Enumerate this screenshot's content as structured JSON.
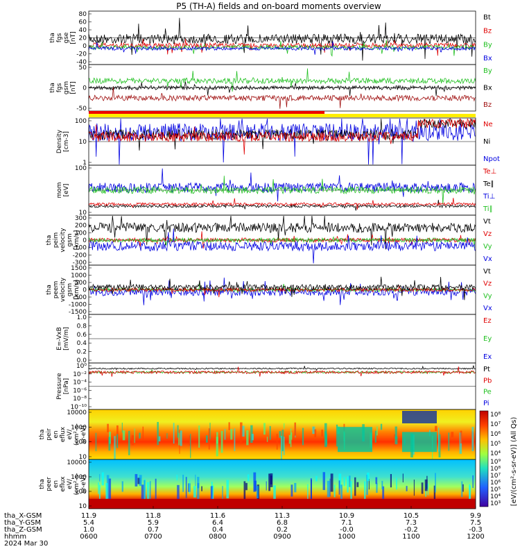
{
  "title": "P5 (TH-A) fields and on-board moments overview",
  "colors": {
    "black": "#000000",
    "red": "#e00000",
    "green": "#20c020",
    "blue": "#0000e0",
    "darkred": "#a01010",
    "yellow": "#ffee00",
    "barred": "#ee0000"
  },
  "chart_data": {
    "type": "line",
    "title": "P5 (TH-A) fields and on-board moments overview",
    "x_ticks": [
      "0600",
      "0700",
      "0800",
      "0900",
      "1000",
      "1100",
      "1200"
    ],
    "ephemeris": {
      "labels": [
        "tha_X-GSM",
        "tha_Y-GSM",
        "tha_Z-GSM",
        "hhmm",
        "2024 Mar 30"
      ],
      "x_gsm": [
        "11.9",
        "11.8",
        "11.6",
        "11.3",
        "10.9",
        "10.5",
        "9.9"
      ],
      "y_gsm": [
        "5.4",
        "5.9",
        "6.4",
        "6.8",
        "7.1",
        "7.3",
        "7.5"
      ],
      "z_gsm": [
        "1.0",
        "0.7",
        "0.4",
        "0.2",
        "-0.0",
        "-0.2",
        "-0.3"
      ],
      "hhmm": [
        "0600",
        "0700",
        "0800",
        "0900",
        "1000",
        "1100",
        "1200"
      ]
    },
    "panels": [
      {
        "id": "fgs_gse",
        "ylabel_lines": [
          "tha",
          "fgs",
          "gse",
          "[nT]"
        ],
        "yticks": [
          "80",
          "60",
          "40",
          "20",
          "0",
          "-20",
          "-40"
        ],
        "legend": [
          {
            "text": "Bt",
            "color": "black"
          },
          {
            "text": "Bz",
            "color": "red"
          },
          {
            "text": "By",
            "color": "green"
          },
          {
            "text": "Bx",
            "color": "blue"
          }
        ]
      },
      {
        "id": "fgs_gsm",
        "ylabel_lines": [
          "tha",
          "fgs",
          "gsm",
          "[nT]"
        ],
        "yticks": [
          "50",
          "0",
          "-50"
        ],
        "legend": [
          {
            "text": "By",
            "color": "green"
          },
          {
            "text": "Bx",
            "color": "black"
          },
          {
            "text": "Bz",
            "color": "darkred"
          }
        ]
      },
      {
        "id": "density",
        "ylabel_lines": [
          "Density",
          "[cm-3]"
        ],
        "yticks": [
          "100",
          "10",
          "1"
        ],
        "legend": [
          {
            "text": "Ne",
            "color": "red"
          },
          {
            "text": "Ni",
            "color": "black"
          },
          {
            "text": "Npot",
            "color": "blue"
          }
        ]
      },
      {
        "id": "temp",
        "ylabel_lines": [
          "mom",
          "[eV]"
        ],
        "yticks": [
          "100",
          "10"
        ],
        "legend": [
          {
            "text": "Te⊥",
            "color": "red"
          },
          {
            "text": "Te∥",
            "color": "black"
          },
          {
            "text": "Ti⊥",
            "color": "blue"
          },
          {
            "text": "Ti∥",
            "color": "green"
          }
        ]
      },
      {
        "id": "peim",
        "ylabel_lines": [
          "tha",
          "peim",
          "velocity",
          "gsm",
          "[km/s]"
        ],
        "yticks": [
          "300",
          "200",
          "100",
          "0",
          "-100",
          "-200",
          "-300"
        ],
        "legend": [
          {
            "text": "Vt",
            "color": "black"
          },
          {
            "text": "Vz",
            "color": "red"
          },
          {
            "text": "Vy",
            "color": "green"
          },
          {
            "text": "Vx",
            "color": "blue"
          }
        ]
      },
      {
        "id": "peem",
        "ylabel_lines": [
          "tha",
          "peem",
          "velocity",
          "gsm",
          "[km/s]"
        ],
        "yticks": [
          "1500",
          "1000",
          "500",
          "0",
          "-500",
          "-1000",
          "-1500"
        ],
        "legend": [
          {
            "text": "Vt",
            "color": "black"
          },
          {
            "text": "Vz",
            "color": "red"
          },
          {
            "text": "Vy",
            "color": "green"
          },
          {
            "text": "Vx",
            "color": "blue"
          }
        ]
      },
      {
        "id": "efield",
        "ylabel_lines": [
          "E=-VxB",
          "[mV/m]"
        ],
        "yticks": [
          "1.0",
          "0.8",
          "0.6",
          "0.4",
          "0.2",
          "0.0"
        ],
        "legend": [
          {
            "text": "Ez",
            "color": "red"
          },
          {
            "text": "Ey",
            "color": "green"
          },
          {
            "text": "Ex",
            "color": "blue"
          }
        ]
      },
      {
        "id": "pressure",
        "ylabel_lines": [
          "Pressure",
          "[nPa]"
        ],
        "yticks": [
          "10⁰",
          "10⁻²",
          "10⁻⁴",
          "10⁻⁶",
          "10⁻⁸",
          "10⁻¹⁰"
        ],
        "legend": [
          {
            "text": "Pt",
            "color": "black"
          },
          {
            "text": "Pb",
            "color": "red"
          },
          {
            "text": "Pe",
            "color": "green"
          },
          {
            "text": "Pi",
            "color": "blue"
          }
        ]
      },
      {
        "id": "peir",
        "ylabel_lines": [
          "tha",
          "peir",
          "en",
          "eflux",
          "eV/",
          "(cm²-s-",
          "sr-eV)"
        ],
        "yticks": [
          "10000",
          "1000",
          "100",
          "10"
        ]
      },
      {
        "id": "peer",
        "ylabel_lines": [
          "tha",
          "peer",
          "en",
          "eflux",
          "eV/",
          "(cm²-s-",
          "sr-eV)"
        ],
        "yticks": [
          "10000",
          "1000",
          "100",
          "10"
        ]
      }
    ],
    "colorbar": {
      "ticks_upper": [
        "10⁸",
        "10⁷",
        "10⁶",
        "10⁵",
        "10⁴"
      ],
      "ticks_lower": [
        "10⁹",
        "10⁸",
        "10⁷",
        "10⁶",
        "10⁵",
        "10⁴",
        "10³"
      ],
      "label": "[eV/(cm²-s-sr-eV)] (All Qs)"
    }
  }
}
